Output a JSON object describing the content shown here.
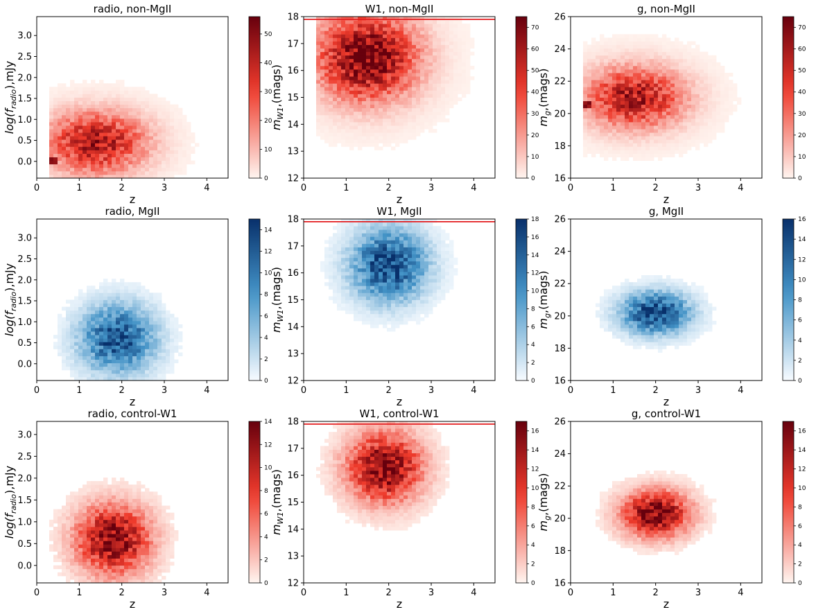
{
  "chart_data": [
    {
      "id": "p11",
      "type": "heatmap",
      "title": "radio, non-MgII",
      "xlabel": "z",
      "ylabel_main": "log(f",
      "ylabel_sub": "radio",
      "ylabel_end": "),mJy",
      "xlim": [
        0,
        4.5
      ],
      "ylim": [
        -0.4,
        3.45
      ],
      "xticks": [
        "0",
        "1",
        "2",
        "3",
        "4"
      ],
      "yticks": [
        "0.0",
        "0.5",
        "1.0",
        "1.5",
        "2.0",
        "2.5",
        "3.0"
      ],
      "cmap": "reds",
      "cbar_max": 56,
      "cbar_ticks": [
        "0",
        "10",
        "20",
        "30",
        "40",
        "50"
      ],
      "peak": {
        "z": 1.4,
        "v": 0.45
      },
      "spread": [
        0.8,
        0.5
      ],
      "density_max": 44,
      "hot_spot": {
        "z": 0.38,
        "v": 0.0,
        "value": 55
      },
      "ref_line": null
    },
    {
      "id": "p12",
      "type": "heatmap",
      "title": "W1, non-MgII",
      "xlabel": "z",
      "ylabel_main": "m",
      "ylabel_sub": "W1",
      "ylabel_end": ",(mags)",
      "xlim": [
        0,
        4.5
      ],
      "ylim": [
        12,
        18
      ],
      "xticks": [
        "0",
        "1",
        "2",
        "3",
        "4"
      ],
      "yticks": [
        "12",
        "13",
        "14",
        "15",
        "16",
        "17",
        "18"
      ],
      "cmap": "reds",
      "cbar_max": 75,
      "cbar_ticks": [
        "0",
        "10",
        "20",
        "30",
        "40",
        "50",
        "60",
        "70"
      ],
      "peak": {
        "z": 1.5,
        "v": 16.5
      },
      "spread": [
        0.8,
        1.1
      ],
      "density_max": 74,
      "hot_spot": null,
      "ref_line": 17.9
    },
    {
      "id": "p13",
      "type": "heatmap",
      "title": "g, non-MgII",
      "xlabel": "z",
      "ylabel_main": "m",
      "ylabel_sub": "g",
      "ylabel_end": ",(mags)",
      "xlim": [
        0,
        4.5
      ],
      "ylim": [
        16,
        26
      ],
      "xticks": [
        "0",
        "1",
        "2",
        "3",
        "4"
      ],
      "yticks": [
        "16",
        "18",
        "20",
        "22",
        "24",
        "26"
      ],
      "cmap": "reds",
      "cbar_max": 75,
      "cbar_ticks": [
        "0",
        "10",
        "20",
        "30",
        "40",
        "50",
        "60",
        "70"
      ],
      "peak": {
        "z": 1.5,
        "v": 21.0
      },
      "spread": [
        0.8,
        1.3
      ],
      "density_max": 58,
      "hot_spot": {
        "z": 0.38,
        "v": 20.6,
        "value": 72
      },
      "ref_line": null
    },
    {
      "id": "p21",
      "type": "heatmap",
      "title": "radio, MgII",
      "xlabel": "z",
      "ylabel_main": "log(f",
      "ylabel_sub": "radio",
      "ylabel_end": "),mJy",
      "xlim": [
        0,
        4.5
      ],
      "ylim": [
        -0.4,
        3.45
      ],
      "xticks": [
        "0",
        "1",
        "2",
        "3",
        "4"
      ],
      "yticks": [
        "0.0",
        "0.5",
        "1.0",
        "1.5",
        "2.0",
        "2.5",
        "3.0"
      ],
      "cmap": "blues",
      "cbar_max": 15,
      "cbar_ticks": [
        "0",
        "2",
        "4",
        "6",
        "8",
        "10",
        "12",
        "14"
      ],
      "peak": {
        "z": 1.9,
        "v": 0.6
      },
      "spread": [
        0.6,
        0.55
      ],
      "density_max": 13,
      "hot_spot": null,
      "ref_line": null
    },
    {
      "id": "p22",
      "type": "heatmap",
      "title": "W1, MgII",
      "xlabel": "z",
      "ylabel_main": "m",
      "ylabel_sub": "W1",
      "ylabel_end": ",(mags)",
      "xlim": [
        0,
        4.5
      ],
      "ylim": [
        12,
        18
      ],
      "xticks": [
        "0",
        "1",
        "2",
        "3",
        "4"
      ],
      "yticks": [
        "12",
        "13",
        "14",
        "15",
        "16",
        "17",
        "18"
      ],
      "cmap": "blues",
      "cbar_max": 18,
      "cbar_ticks": [
        "0",
        "2",
        "4",
        "6",
        "8",
        "10",
        "12",
        "14",
        "16",
        "18"
      ],
      "peak": {
        "z": 2.0,
        "v": 16.3
      },
      "spread": [
        0.6,
        0.9
      ],
      "density_max": 17,
      "hot_spot": null,
      "ref_line": 17.9
    },
    {
      "id": "p23",
      "type": "heatmap",
      "title": "g, MgII",
      "xlabel": "z",
      "ylabel_main": "m",
      "ylabel_sub": "g",
      "ylabel_end": ",(mags)",
      "xlim": [
        0,
        4.5
      ],
      "ylim": [
        16,
        26
      ],
      "xticks": [
        "0",
        "1",
        "2",
        "3",
        "4"
      ],
      "yticks": [
        "16",
        "18",
        "20",
        "22",
        "24",
        "26"
      ],
      "cmap": "blues",
      "cbar_max": 16,
      "cbar_ticks": [
        "0",
        "2",
        "4",
        "6",
        "8",
        "10",
        "12",
        "14",
        "16"
      ],
      "peak": {
        "z": 2.0,
        "v": 20.2
      },
      "spread": [
        0.55,
        0.9
      ],
      "density_max": 15,
      "hot_spot": null,
      "ref_line": null
    },
    {
      "id": "p31",
      "type": "heatmap",
      "title": "radio, control-W1",
      "xlabel": "z",
      "ylabel_main": "log(f",
      "ylabel_sub": "radio",
      "ylabel_end": "),mJy",
      "xlim": [
        0,
        4.5
      ],
      "ylim": [
        -0.4,
        3.3
      ],
      "xticks": [
        "0",
        "1",
        "2",
        "3",
        "4"
      ],
      "yticks": [
        "0.0",
        "0.5",
        "1.0",
        "1.5",
        "2.0",
        "2.5",
        "3.0"
      ],
      "cmap": "reds",
      "cbar_max": 14,
      "cbar_ticks": [
        "0",
        "2",
        "4",
        "6",
        "8",
        "10",
        "12",
        "14"
      ],
      "peak": {
        "z": 1.8,
        "v": 0.6
      },
      "spread": [
        0.6,
        0.55
      ],
      "density_max": 13,
      "hot_spot": null,
      "ref_line": null
    },
    {
      "id": "p32",
      "type": "heatmap",
      "title": "W1, control-W1",
      "xlabel": "z",
      "ylabel_main": "m",
      "ylabel_sub": "W1",
      "ylabel_end": ",(mags)",
      "xlim": [
        0,
        4.5
      ],
      "ylim": [
        12,
        18
      ],
      "xticks": [
        "0",
        "1",
        "2",
        "3",
        "4"
      ],
      "yticks": [
        "12",
        "13",
        "14",
        "15",
        "16",
        "17",
        "18"
      ],
      "cmap": "reds",
      "cbar_max": 17,
      "cbar_ticks": [
        "0",
        "2",
        "4",
        "6",
        "8",
        "10",
        "12",
        "14",
        "16"
      ],
      "peak": {
        "z": 1.9,
        "v": 16.3
      },
      "spread": [
        0.6,
        0.9
      ],
      "density_max": 16,
      "hot_spot": null,
      "ref_line": 17.9
    },
    {
      "id": "p33",
      "type": "heatmap",
      "title": "g, control-W1",
      "xlabel": "z",
      "ylabel_main": "m",
      "ylabel_sub": "g",
      "ylabel_end": ",(mags)",
      "xlim": [
        0,
        4.5
      ],
      "ylim": [
        16,
        26
      ],
      "xticks": [
        "0",
        "1",
        "2",
        "3",
        "4"
      ],
      "yticks": [
        "16",
        "18",
        "20",
        "22",
        "24",
        "26"
      ],
      "cmap": "reds",
      "cbar_max": 17,
      "cbar_ticks": [
        "0",
        "2",
        "4",
        "6",
        "8",
        "10",
        "12",
        "14",
        "16"
      ],
      "peak": {
        "z": 2.0,
        "v": 20.3
      },
      "spread": [
        0.55,
        1.0
      ],
      "density_max": 16,
      "hot_spot": null,
      "ref_line": null
    }
  ],
  "colors": {
    "reds_low": "#fff5f0",
    "reds_mid": "#ef3b2c",
    "reds_high": "#67000d",
    "blues_low": "#f7fbff",
    "blues_mid": "#4292c6",
    "blues_high": "#08306b",
    "ref_line": "#e31a1c"
  }
}
